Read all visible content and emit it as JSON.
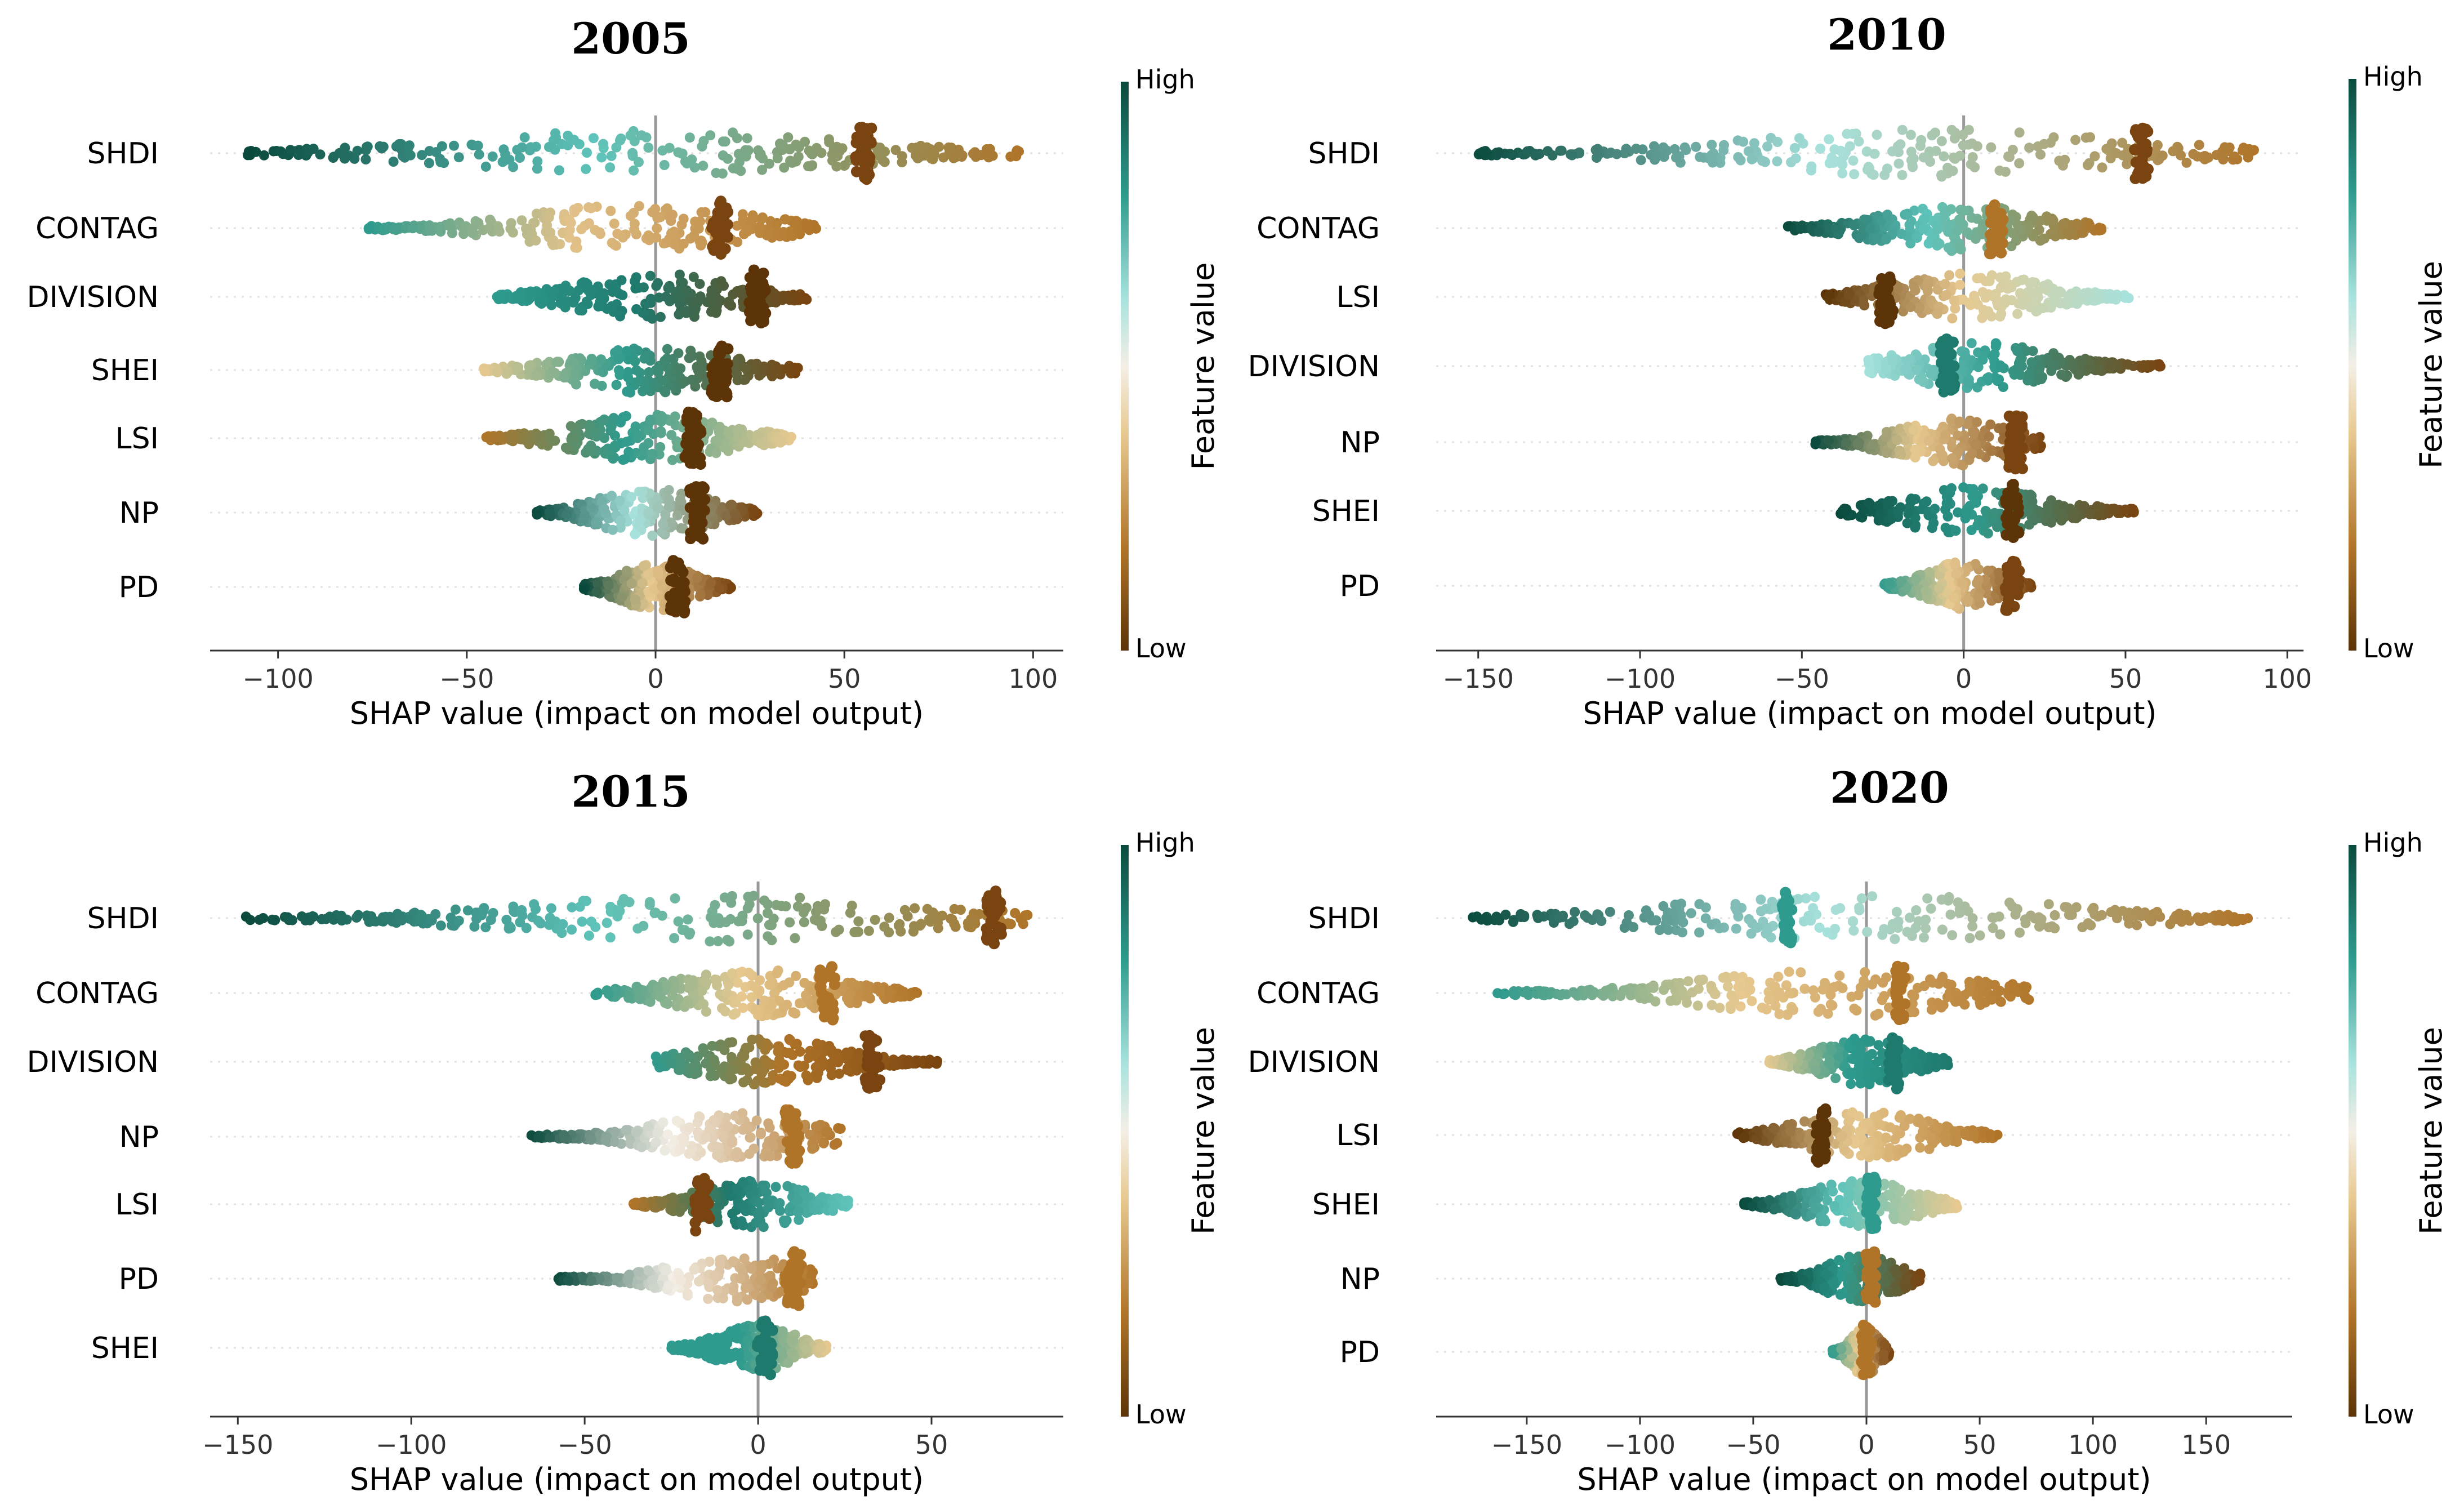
{
  "figure": {
    "description_free": true,
    "colorbar": {
      "high_label": "High",
      "low_label": "Low",
      "axis_label": "Feature value",
      "colors": [
        "#5c3407",
        "#b07428",
        "#e7c990",
        "#f4efe6",
        "#a7e2dd",
        "#2e9b8e",
        "#0a4a3d"
      ]
    }
  },
  "chart_data": [
    {
      "type": "scatter",
      "title": "2005",
      "xlabel": "SHAP value (impact on model output)",
      "xlim": [
        -118,
        108
      ],
      "xticks": [
        -100,
        -50,
        0,
        50,
        100
      ],
      "features": [
        {
          "name": "SHDI",
          "min": -108,
          "max": 97,
          "left_color": "#0a4a3d",
          "right_color": "#b07428",
          "peak": 55,
          "peak_color": "#7a4410",
          "mid_color": "#5fc4bb"
        },
        {
          "name": "CONTAG",
          "min": -76,
          "max": 43,
          "left_color": "#2e9b8e",
          "right_color": "#b07428",
          "peak": 17,
          "peak_color": "#7a4410",
          "mid_color": "#e2c28a"
        },
        {
          "name": "DIVISION",
          "min": -42,
          "max": 40,
          "left_color": "#2e9b8e",
          "right_color": "#7a4410",
          "peak": 27,
          "peak_color": "#5c3407",
          "mid_color": "#1f7a6e"
        },
        {
          "name": "SHEI",
          "min": -46,
          "max": 38,
          "left_color": "#e7c990",
          "right_color": "#7a4410",
          "peak": 17,
          "peak_color": "#5c3407",
          "mid_color": "#2e9b8e"
        },
        {
          "name": "LSI",
          "min": -45,
          "max": 36,
          "left_color": "#b07428",
          "right_color": "#e7c990",
          "peak": 10,
          "peak_color": "#5c3407",
          "mid_color": "#2e9b8e"
        },
        {
          "name": "NP",
          "min": -32,
          "max": 27,
          "left_color": "#0a4a3d",
          "right_color": "#7a4410",
          "peak": 11,
          "peak_color": "#5c3407",
          "mid_color": "#a7e2dd"
        },
        {
          "name": "PD",
          "min": -19,
          "max": 20,
          "left_color": "#0a4a3d",
          "right_color": "#7a4410",
          "peak": 6,
          "peak_color": "#5c3407",
          "mid_color": "#e7c990"
        }
      ]
    },
    {
      "type": "scatter",
      "title": "2010",
      "xlabel": "SHAP value (impact on model output)",
      "xlim": [
        -163,
        105
      ],
      "xticks": [
        -150,
        -100,
        -50,
        0,
        50,
        100
      ],
      "features": [
        {
          "name": "SHDI",
          "min": -152,
          "max": 91,
          "left_color": "#0a4a3d",
          "right_color": "#b07428",
          "peak": 55,
          "peak_color": "#7a4410",
          "mid_color": "#a7e2dd"
        },
        {
          "name": "CONTAG",
          "min": -55,
          "max": 43,
          "left_color": "#0a4a3d",
          "right_color": "#b07428",
          "peak": 10,
          "peak_color": "#b07428",
          "mid_color": "#5fc4bb"
        },
        {
          "name": "LSI",
          "min": -43,
          "max": 51,
          "left_color": "#5c3407",
          "right_color": "#a7e2dd",
          "peak": -24,
          "peak_color": "#5c3407",
          "mid_color": "#e7c990"
        },
        {
          "name": "DIVISION",
          "min": -30,
          "max": 61,
          "left_color": "#a7e2dd",
          "right_color": "#7a4410",
          "peak": -5,
          "peak_color": "#1f7a6e",
          "mid_color": "#2e9b8e"
        },
        {
          "name": "NP",
          "min": -46,
          "max": 24,
          "left_color": "#0a4a3d",
          "right_color": "#7a4410",
          "peak": 16,
          "peak_color": "#7a4410",
          "mid_color": "#e7c990"
        },
        {
          "name": "SHEI",
          "min": -38,
          "max": 53,
          "left_color": "#0a4a3d",
          "right_color": "#7a4410",
          "peak": 15,
          "peak_color": "#5c3407",
          "mid_color": "#2e9b8e"
        },
        {
          "name": "PD",
          "min": -25,
          "max": 21,
          "left_color": "#2e9b8e",
          "right_color": "#7a4410",
          "peak": 15,
          "peak_color": "#7a4410",
          "mid_color": "#e7c990"
        }
      ]
    },
    {
      "type": "scatter",
      "title": "2015",
      "xlabel": "SHAP value (impact on model output)",
      "xlim": [
        -158,
        88
      ],
      "xticks": [
        -150,
        -100,
        -50,
        0,
        50
      ],
      "features": [
        {
          "name": "SHDI",
          "min": -148,
          "max": 78,
          "left_color": "#0a4a3d",
          "right_color": "#b07428",
          "peak": 68,
          "peak_color": "#7a4410",
          "mid_color": "#5fc4bb"
        },
        {
          "name": "CONTAG",
          "min": -47,
          "max": 46,
          "left_color": "#2e9b8e",
          "right_color": "#b07428",
          "peak": 20,
          "peak_color": "#b07428",
          "mid_color": "#e7c990"
        },
        {
          "name": "DIVISION",
          "min": -30,
          "max": 52,
          "left_color": "#2e9b8e",
          "right_color": "#7a4410",
          "peak": 33,
          "peak_color": "#7a4410",
          "mid_color": "#b07428"
        },
        {
          "name": "NP",
          "min": -66,
          "max": 24,
          "left_color": "#0a4a3d",
          "right_color": "#b07428",
          "peak": 10,
          "peak_color": "#b07428",
          "mid_color": "#f4efe6"
        },
        {
          "name": "LSI",
          "min": -36,
          "max": 26,
          "left_color": "#b07428",
          "right_color": "#5fc4bb",
          "peak": -16,
          "peak_color": "#7a4410",
          "mid_color": "#1f7a6e"
        },
        {
          "name": "PD",
          "min": -58,
          "max": 16,
          "left_color": "#0a4a3d",
          "right_color": "#b07428",
          "peak": 10,
          "peak_color": "#b07428",
          "mid_color": "#f4efe6"
        },
        {
          "name": "SHEI",
          "min": -25,
          "max": 20,
          "left_color": "#2e9b8e",
          "right_color": "#e7c990",
          "peak": 2,
          "peak_color": "#1f7a6e",
          "mid_color": "#2e9b8e"
        }
      ]
    },
    {
      "type": "scatter",
      "title": "2020",
      "xlabel": "SHAP value (impact on model output)",
      "xlim": [
        -190,
        188
      ],
      "xticks": [
        -150,
        -100,
        -50,
        0,
        50,
        100,
        150
      ],
      "features": [
        {
          "name": "SHDI",
          "min": -175,
          "max": 170,
          "left_color": "#0a4a3d",
          "right_color": "#b07428",
          "peak": -35,
          "peak_color": "#2e9b8e",
          "mid_color": "#a7e2dd"
        },
        {
          "name": "CONTAG",
          "min": -163,
          "max": 76,
          "left_color": "#2e9b8e",
          "right_color": "#b07428",
          "peak": 15,
          "peak_color": "#b07428",
          "mid_color": "#e7c990"
        },
        {
          "name": "DIVISION",
          "min": -43,
          "max": 36,
          "left_color": "#e7c990",
          "right_color": "#1f7a6e",
          "peak": 12,
          "peak_color": "#1f7a6e",
          "mid_color": "#2e9b8e"
        },
        {
          "name": "LSI",
          "min": -57,
          "max": 58,
          "left_color": "#5c3407",
          "right_color": "#b07428",
          "peak": -20,
          "peak_color": "#5c3407",
          "mid_color": "#e7c990"
        },
        {
          "name": "SHEI",
          "min": -54,
          "max": 40,
          "left_color": "#0a4a3d",
          "right_color": "#e7c990",
          "peak": 2,
          "peak_color": "#2e9b8e",
          "mid_color": "#5fc4bb"
        },
        {
          "name": "NP",
          "min": -38,
          "max": 24,
          "left_color": "#0a4a3d",
          "right_color": "#7a4410",
          "peak": 2,
          "peak_color": "#b07428",
          "mid_color": "#2e9b8e"
        },
        {
          "name": "PD",
          "min": -15,
          "max": 10,
          "left_color": "#2e9b8e",
          "right_color": "#7a4410",
          "peak": 0,
          "peak_color": "#b07428",
          "mid_color": "#e7c990"
        }
      ]
    }
  ]
}
